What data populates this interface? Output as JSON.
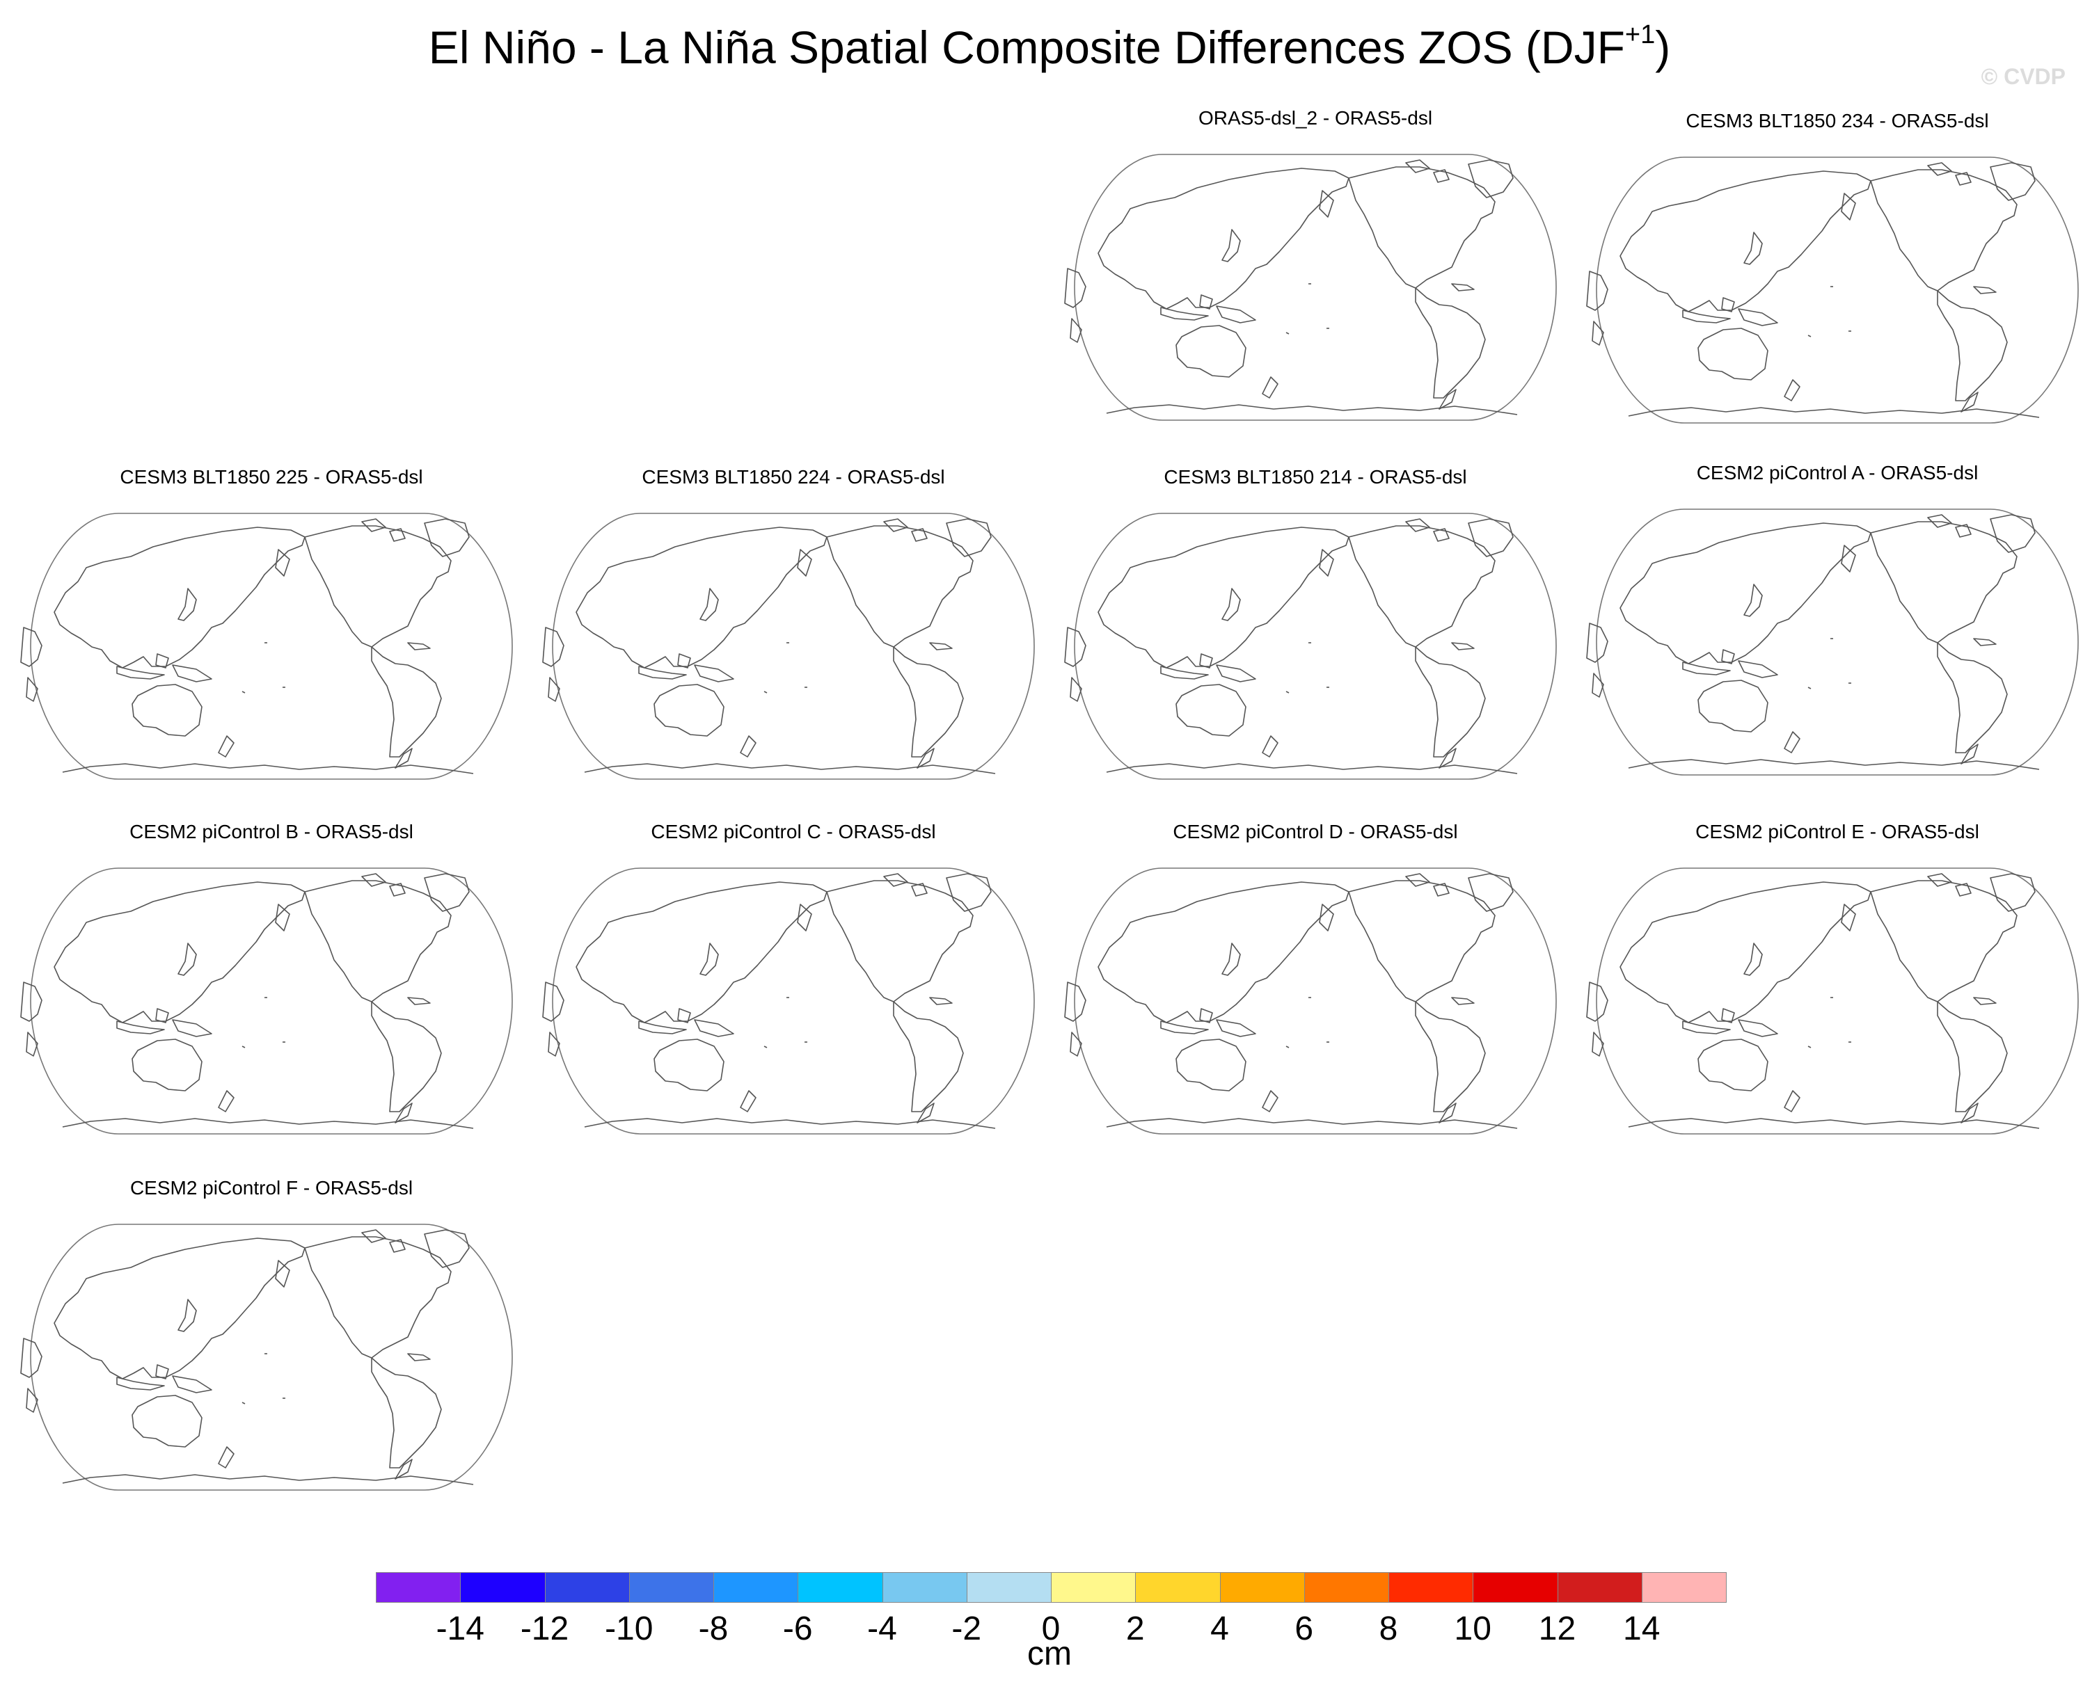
{
  "title": {
    "main": "El Niño - La Niña Spatial Composite Differences ZOS (DJF",
    "sup": "+1",
    "close": ")"
  },
  "watermark": "© CVDP",
  "chart_data": {
    "type": "heatmap",
    "variable": "ZOS",
    "season": "DJF+1",
    "projection": "Robinson (Pacific-centered)",
    "panels": [
      {
        "title": "ORAS5-dsl_2 - ORAS5-dsl"
      },
      {
        "title": "CESM3 BLT1850 234 - ORAS5-dsl"
      },
      {
        "title": "CESM3 BLT1850 225 - ORAS5-dsl"
      },
      {
        "title": "CESM3 BLT1850 224 - ORAS5-dsl"
      },
      {
        "title": "CESM3 BLT1850 214 - ORAS5-dsl"
      },
      {
        "title": "CESM2 piControl A - ORAS5-dsl"
      },
      {
        "title": "CESM2 piControl B - ORAS5-dsl"
      },
      {
        "title": "CESM2 piControl C - ORAS5-dsl"
      },
      {
        "title": "CESM2 piControl D - ORAS5-dsl"
      },
      {
        "title": "CESM2 piControl E - ORAS5-dsl"
      },
      {
        "title": "CESM2 piControl F - ORAS5-dsl"
      }
    ],
    "colorbar": {
      "units": "cm",
      "levels": [
        -14,
        -12,
        -10,
        -8,
        -6,
        -4,
        -2,
        0,
        2,
        4,
        6,
        8,
        10,
        12,
        14
      ],
      "tick_labels": [
        "-14",
        "-12",
        "-10",
        "-8",
        "-6",
        "-4",
        "-2",
        "0",
        "2",
        "4",
        "6",
        "8",
        "10",
        "12",
        "14"
      ],
      "colors": [
        "#8220f0",
        "#1e00ff",
        "#2d41e6",
        "#3d73e9",
        "#1e96ff",
        "#00c3ff",
        "#78c8f0",
        "#b4def2",
        "#fff88c",
        "#ffd62c",
        "#ffaa00",
        "#ff7700",
        "#ff2b00",
        "#e60000",
        "#d21d1d",
        "#ffb4b4"
      ]
    }
  }
}
